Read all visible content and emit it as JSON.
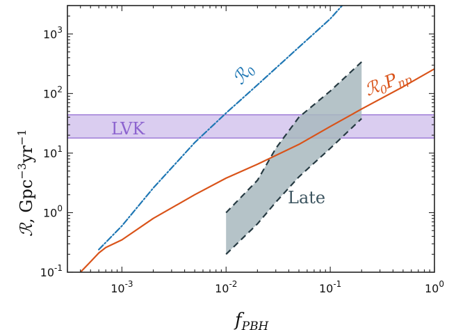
{
  "chart_data": {
    "type": "line",
    "xscale": "log",
    "yscale": "log",
    "xlim": [
      0.0003,
      1
    ],
    "ylim": [
      0.1,
      3000
    ],
    "xlabel": "f_PBH",
    "ylabel": "R, Gpc^-3 yr^-1",
    "x_ticks": [
      {
        "value": 0.001,
        "base": "10",
        "exp": "-3"
      },
      {
        "value": 0.01,
        "base": "10",
        "exp": "-2"
      },
      {
        "value": 0.1,
        "base": "10",
        "exp": "-1"
      },
      {
        "value": 1,
        "base": "10",
        "exp": "0"
      }
    ],
    "y_ticks": [
      {
        "value": 0.1,
        "base": "10",
        "exp": "-1"
      },
      {
        "value": 1,
        "base": "10",
        "exp": "0"
      },
      {
        "value": 10,
        "base": "10",
        "exp": "1"
      },
      {
        "value": 100,
        "base": "10",
        "exp": "2"
      },
      {
        "value": 1000,
        "base": "10",
        "exp": "3"
      }
    ],
    "grid": false,
    "series": [
      {
        "name": "R0",
        "style": "dash-dot",
        "color": "#1f77b4",
        "points": [
          [
            0.0006,
            0.24
          ],
          [
            0.001,
            0.6
          ],
          [
            0.002,
            2.6
          ],
          [
            0.005,
            15
          ],
          [
            0.01,
            47
          ],
          [
            0.02,
            140
          ],
          [
            0.05,
            600
          ],
          [
            0.1,
            1800
          ],
          [
            0.13,
            3000
          ]
        ]
      },
      {
        "name": "R0 Pnp",
        "style": "solid",
        "color": "#d95319",
        "points": [
          [
            0.0004,
            0.1
          ],
          [
            0.0005,
            0.15
          ],
          [
            0.0006,
            0.21
          ],
          [
            0.0007,
            0.26
          ],
          [
            0.001,
            0.35
          ],
          [
            0.002,
            0.8
          ],
          [
            0.005,
            2.0
          ],
          [
            0.01,
            3.8
          ],
          [
            0.02,
            6.5
          ],
          [
            0.05,
            14
          ],
          [
            0.1,
            28
          ],
          [
            0.2,
            55
          ],
          [
            0.5,
            130
          ],
          [
            1,
            260
          ]
        ]
      }
    ],
    "bands": [
      {
        "name": "LVK",
        "y_min": 17.9,
        "y_max": 44,
        "color": "#8c63cf"
      }
    ],
    "regions": [
      {
        "name": "Late",
        "fill": "#a8b8be",
        "edge": "#263a42",
        "upper": [
          [
            0.01,
            1.0
          ],
          [
            0.02,
            3.5
          ],
          [
            0.03,
            12
          ],
          [
            0.05,
            40
          ],
          [
            0.1,
            110
          ],
          [
            0.2,
            340
          ]
        ],
        "lower": [
          [
            0.01,
            0.2
          ],
          [
            0.02,
            0.65
          ],
          [
            0.03,
            1.5
          ],
          [
            0.05,
            4.0
          ],
          [
            0.1,
            12
          ],
          [
            0.2,
            38
          ]
        ]
      }
    ],
    "annotations": [
      {
        "text": "LVK",
        "color": "#8c63cf"
      },
      {
        "text": "R0",
        "color": "#1f77b4"
      },
      {
        "text": "R0Pnp",
        "color": "#d95319"
      },
      {
        "text": "Late",
        "color": "#3d5560"
      }
    ]
  }
}
